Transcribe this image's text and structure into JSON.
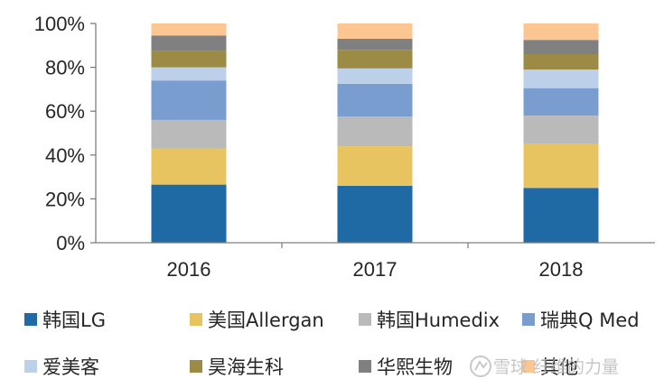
{
  "chart_data": {
    "type": "bar",
    "stacked": true,
    "categories": [
      "2016",
      "2017",
      "2018"
    ],
    "y_ticks": [
      "0%",
      "20%",
      "40%",
      "60%",
      "80%",
      "100%"
    ],
    "ylim": [
      0,
      100
    ],
    "grid": false,
    "legend_position": "bottom",
    "series": [
      {
        "name": "韩国LG",
        "color": "#1f6aa5",
        "values": [
          26.5,
          26.0,
          25.0
        ]
      },
      {
        "name": "美国Allergan",
        "color": "#e8c460",
        "values": [
          16.5,
          18.0,
          20.0
        ]
      },
      {
        "name": "韩国Humedix",
        "color": "#bababa",
        "values": [
          13.0,
          13.5,
          13.0
        ]
      },
      {
        "name": "瑞典Q Med",
        "color": "#7a9dd0",
        "values": [
          18.0,
          15.0,
          12.5
        ]
      },
      {
        "name": "爱美客",
        "color": "#bcd0ea",
        "values": [
          6.0,
          7.0,
          8.5
        ]
      },
      {
        "name": "昊海生科",
        "color": "#9c8b45",
        "values": [
          7.5,
          8.5,
          7.0
        ]
      },
      {
        "name": "华熙生物",
        "color": "#808080",
        "values": [
          7.0,
          5.0,
          6.5
        ]
      },
      {
        "name": "其他",
        "color": "#fbc692",
        "values": [
          5.5,
          7.0,
          7.5
        ]
      }
    ]
  },
  "watermark": "雪球 纤维的力量"
}
